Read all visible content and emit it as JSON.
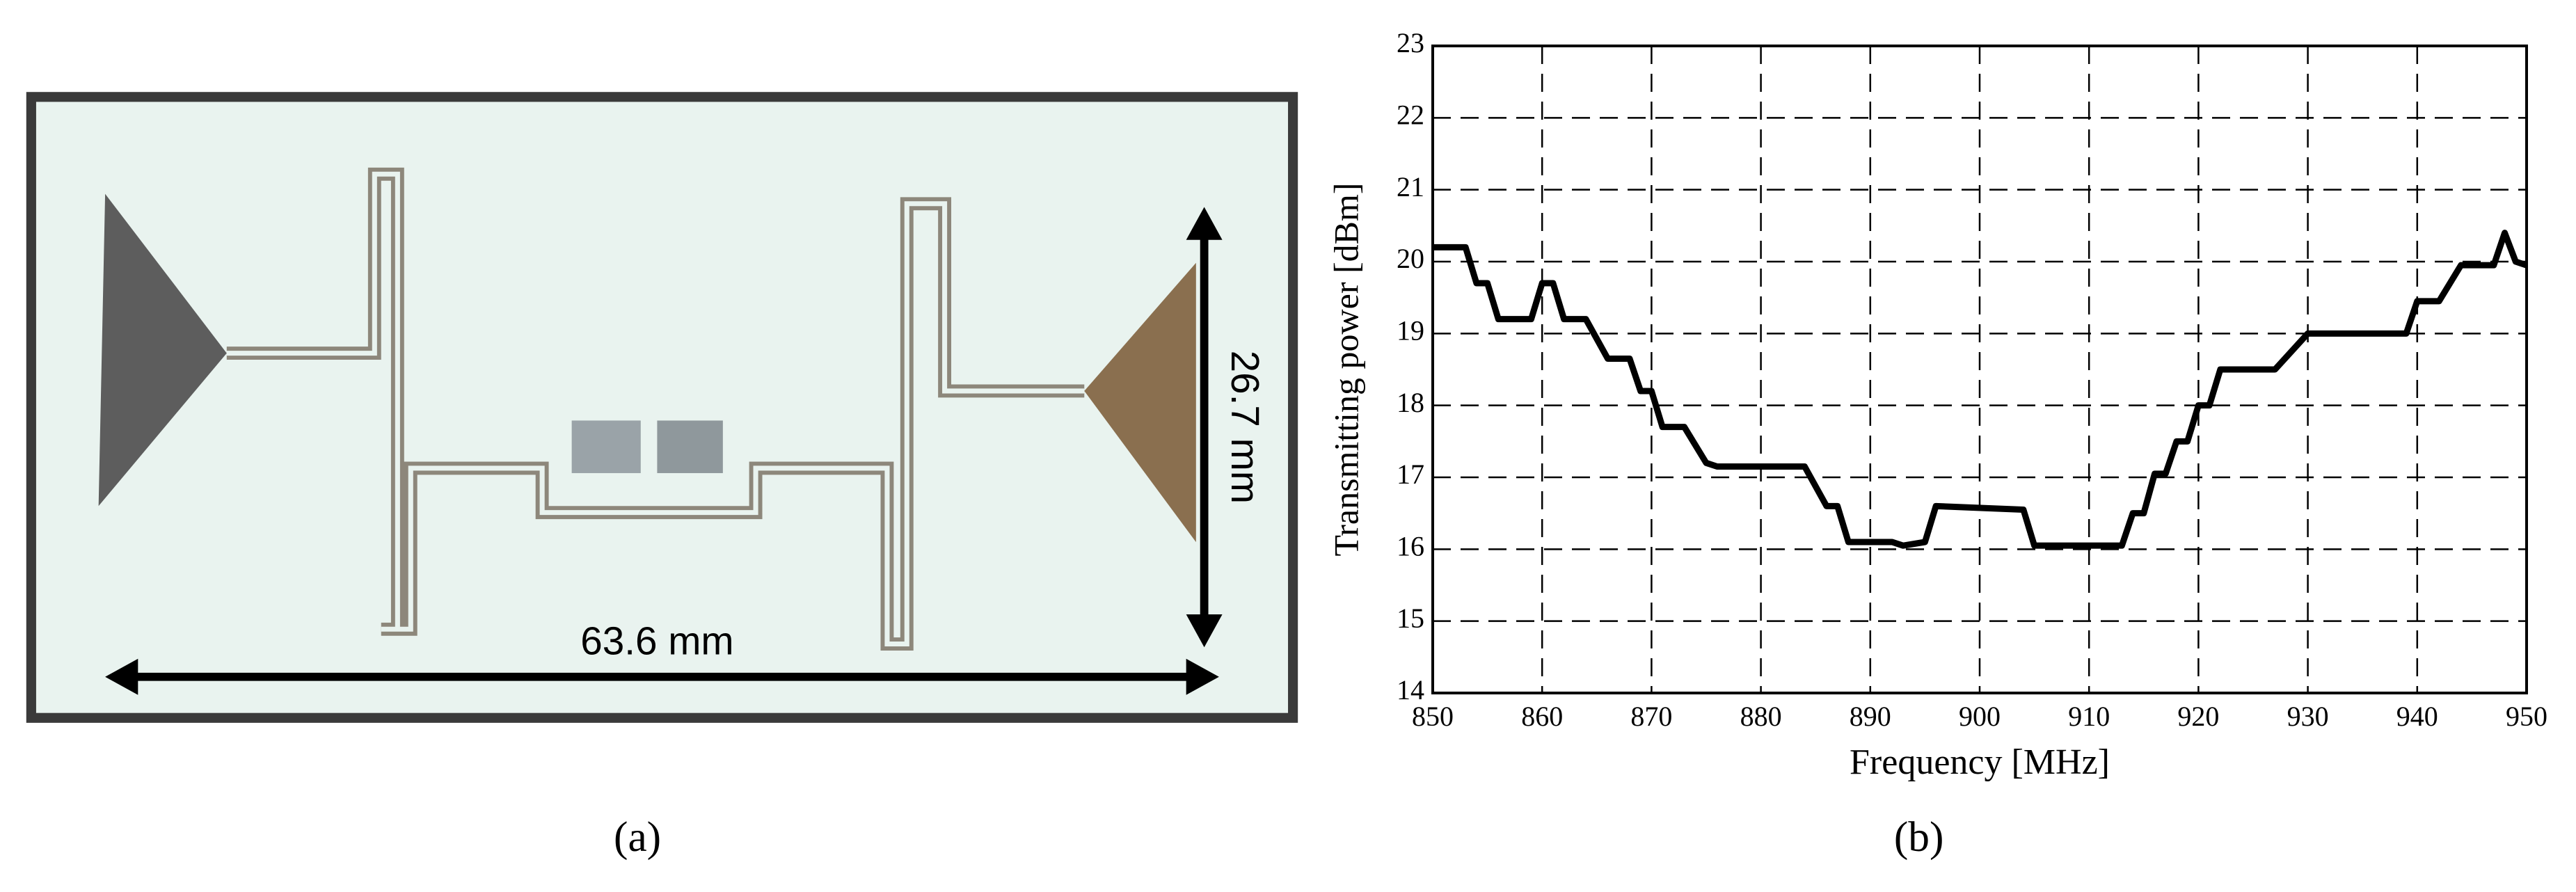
{
  "photo": {
    "width_label": "63.6 mm",
    "height_label": "26.7 mm",
    "panel_label": "(a)"
  },
  "chart_data": {
    "type": "line",
    "panel_label": "(b)",
    "x_label": "Frequency [MHz]",
    "y_label": "Transmitting power [dBm]",
    "x": [
      850,
      853,
      854,
      855,
      856,
      859,
      860,
      861,
      862,
      864,
      866,
      868,
      869,
      870,
      871,
      873,
      875,
      876,
      884,
      886,
      887,
      888,
      892,
      893,
      895,
      896,
      904,
      905,
      906,
      913,
      914,
      915,
      916,
      917,
      918,
      919,
      920,
      921,
      922,
      927,
      930,
      939,
      940,
      942,
      944,
      947,
      948,
      949,
      950
    ],
    "series": [
      {
        "name": "Transmitting power",
        "color": "#000000",
        "values": [
          20.2,
          20.2,
          19.7,
          19.7,
          19.2,
          19.2,
          19.7,
          19.7,
          19.2,
          19.2,
          18.65,
          18.65,
          18.2,
          18.2,
          17.7,
          17.7,
          17.2,
          17.15,
          17.15,
          16.6,
          16.6,
          16.1,
          16.1,
          16.05,
          16.1,
          16.6,
          16.55,
          16.05,
          16.05,
          16.05,
          16.5,
          16.5,
          17.05,
          17.05,
          17.5,
          17.5,
          18.0,
          18.0,
          18.5,
          18.5,
          19.0,
          19.0,
          19.45,
          19.45,
          19.95,
          19.95,
          20.4,
          20.0,
          19.95
        ]
      }
    ],
    "xlim": [
      850,
      950
    ],
    "xticks": [
      850,
      860,
      870,
      880,
      890,
      900,
      910,
      920,
      930,
      940,
      950
    ],
    "ylim": [
      14,
      23
    ],
    "yticks": [
      14,
      15,
      16,
      17,
      18,
      19,
      20,
      21,
      22,
      23
    ],
    "grid": true
  }
}
